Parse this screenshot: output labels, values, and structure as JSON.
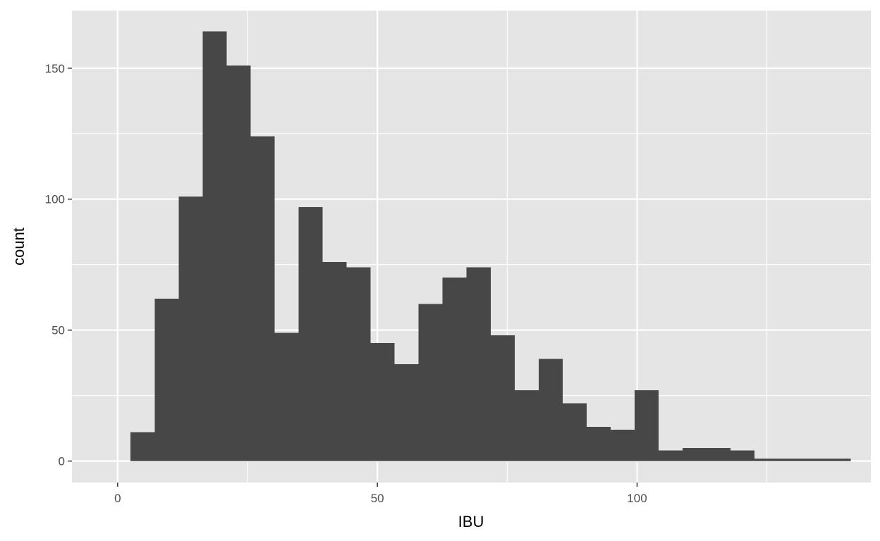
{
  "chart_data": {
    "type": "bar",
    "xlabel": "IBU",
    "ylabel": "count",
    "bin_width": 4.62,
    "bins": [
      {
        "start": 2.5,
        "end": 7.12,
        "count": 11
      },
      {
        "start": 7.12,
        "end": 11.74,
        "count": 62
      },
      {
        "start": 11.74,
        "end": 16.36,
        "count": 101
      },
      {
        "start": 16.36,
        "end": 20.98,
        "count": 164
      },
      {
        "start": 20.98,
        "end": 25.6,
        "count": 151
      },
      {
        "start": 25.6,
        "end": 30.22,
        "count": 124
      },
      {
        "start": 30.22,
        "end": 34.84,
        "count": 49
      },
      {
        "start": 34.84,
        "end": 39.46,
        "count": 97
      },
      {
        "start": 39.46,
        "end": 44.08,
        "count": 76
      },
      {
        "start": 44.08,
        "end": 48.7,
        "count": 74
      },
      {
        "start": 48.7,
        "end": 53.32,
        "count": 45
      },
      {
        "start": 53.32,
        "end": 57.94,
        "count": 37
      },
      {
        "start": 57.94,
        "end": 62.56,
        "count": 60
      },
      {
        "start": 62.56,
        "end": 67.18,
        "count": 70
      },
      {
        "start": 67.18,
        "end": 71.8,
        "count": 74
      },
      {
        "start": 71.8,
        "end": 76.42,
        "count": 48
      },
      {
        "start": 76.42,
        "end": 81.04,
        "count": 27
      },
      {
        "start": 81.04,
        "end": 85.66,
        "count": 39
      },
      {
        "start": 85.66,
        "end": 90.28,
        "count": 22
      },
      {
        "start": 90.28,
        "end": 94.9,
        "count": 13
      },
      {
        "start": 94.9,
        "end": 99.52,
        "count": 12
      },
      {
        "start": 99.52,
        "end": 104.14,
        "count": 27
      },
      {
        "start": 104.14,
        "end": 108.76,
        "count": 4
      },
      {
        "start": 108.76,
        "end": 113.38,
        "count": 5
      },
      {
        "start": 113.38,
        "end": 118.0,
        "count": 5
      },
      {
        "start": 118.0,
        "end": 122.62,
        "count": 4
      },
      {
        "start": 122.62,
        "end": 127.24,
        "count": 1
      },
      {
        "start": 127.24,
        "end": 131.86,
        "count": 1
      },
      {
        "start": 131.86,
        "end": 136.48,
        "count": 1
      },
      {
        "start": 136.48,
        "end": 141.1,
        "count": 1
      }
    ],
    "xlim": [
      -8.8,
      145.0
    ],
    "ylim": [
      -8.2,
      172.0
    ],
    "x_ticks": [
      0,
      50,
      100
    ],
    "x_minor_ticks": [
      25,
      75,
      125
    ],
    "y_ticks": [
      0,
      50,
      100,
      150
    ],
    "y_minor_ticks": [
      25,
      75,
      125
    ],
    "grid": true,
    "colors": {
      "panel_background": "#e5e5e5",
      "grid": "#ffffff",
      "bar_fill": "#474747",
      "tick_label": "#4d4d4d",
      "axis_title": "#000000"
    }
  }
}
